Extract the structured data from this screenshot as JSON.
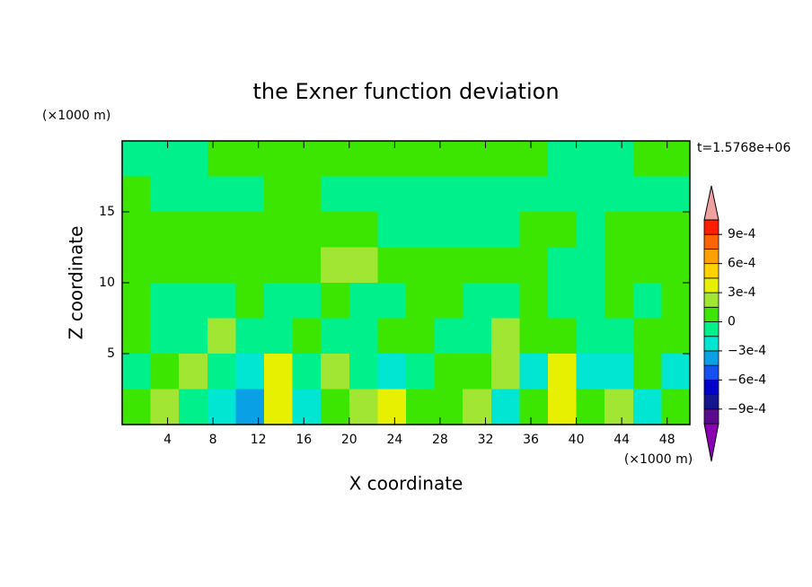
{
  "chart_data": {
    "type": "contour",
    "title": "the Exner function deviation",
    "x_label": "X coordinate",
    "y_label": "Z coordinate",
    "x_unit": "(×1000 m)",
    "y_unit": "(×1000 m)",
    "annotation": "t=1.5768e+06",
    "xlim": [
      0,
      50
    ],
    "ylim": [
      0,
      20
    ],
    "xticks": [
      4,
      8,
      12,
      16,
      20,
      24,
      28,
      32,
      36,
      40,
      44,
      48
    ],
    "yticks": [
      5,
      10,
      15
    ],
    "x": [
      0,
      2.5,
      5,
      7.5,
      10,
      12.5,
      15,
      17.5,
      20,
      22.5,
      25,
      27.5,
      30,
      32.5,
      35,
      37.5,
      40,
      42.5,
      45,
      47.5,
      50
    ],
    "z": [
      20,
      17.5,
      15,
      12.5,
      10,
      7.5,
      5,
      2.5,
      0
    ],
    "values": [
      [
        -5e-05,
        -5e-05,
        -5e-05,
        5e-05,
        5e-05,
        5e-05,
        5e-05,
        5e-05,
        5e-05,
        5e-05,
        5e-05,
        5e-05,
        5e-05,
        5e-05,
        5e-05,
        -5e-05,
        -5e-05,
        -5e-05,
        5e-05,
        5e-05
      ],
      [
        5e-05,
        -5e-05,
        -5e-05,
        -5e-05,
        -5e-05,
        5e-05,
        5e-05,
        -5e-05,
        -5e-05,
        -5e-05,
        -5e-05,
        -5e-05,
        -5e-05,
        -5e-05,
        -5e-05,
        -5e-05,
        -5e-05,
        -5e-05,
        -5e-05,
        -5e-05
      ],
      [
        5e-05,
        5e-05,
        5e-05,
        5e-05,
        5e-05,
        5e-05,
        5e-05,
        5e-05,
        5e-05,
        -5e-05,
        -5e-05,
        -5e-05,
        -5e-05,
        -5e-05,
        5e-05,
        5e-05,
        -5e-05,
        5e-05,
        5e-05,
        5e-05
      ],
      [
        5e-05,
        5e-05,
        5e-05,
        5e-05,
        5e-05,
        5e-05,
        5e-05,
        0.0002,
        0.0002,
        5e-05,
        5e-05,
        5e-05,
        5e-05,
        5e-05,
        5e-05,
        -5e-05,
        -5e-05,
        5e-05,
        5e-05,
        5e-05
      ],
      [
        5e-05,
        -5e-05,
        -5e-05,
        -5e-05,
        5e-05,
        -5e-05,
        -5e-05,
        5e-05,
        -5e-05,
        -5e-05,
        5e-05,
        5e-05,
        -5e-05,
        -5e-05,
        5e-05,
        -5e-05,
        -5e-05,
        5e-05,
        -5e-05,
        5e-05
      ],
      [
        5e-05,
        -5e-05,
        -5e-05,
        0.0002,
        -5e-05,
        -5e-05,
        5e-05,
        -5e-05,
        -5e-05,
        5e-05,
        5e-05,
        -5e-05,
        -5e-05,
        0.0002,
        5e-05,
        5e-05,
        -5e-05,
        -5e-05,
        5e-05,
        5e-05
      ],
      [
        -5e-05,
        5e-05,
        0.0002,
        -5e-05,
        -0.0002,
        0.00035,
        -5e-05,
        0.0002,
        -5e-05,
        -0.0002,
        -5e-05,
        5e-05,
        5e-05,
        0.0002,
        -0.0002,
        0.00035,
        -0.0002,
        -0.0002,
        5e-05,
        -0.0002
      ],
      [
        5e-05,
        0.0002,
        -5e-05,
        -0.0002,
        -0.0004,
        0.00035,
        -0.0002,
        5e-05,
        0.0002,
        0.00035,
        5e-05,
        5e-05,
        0.0002,
        -0.0002,
        5e-05,
        0.00035,
        5e-05,
        0.0002,
        -0.0002,
        5e-05
      ]
    ],
    "levels": [
      -0.00105,
      -0.0009,
      -0.00075,
      -0.0006,
      -0.00045,
      -0.0003,
      -0.00015,
      0,
      0.00015,
      0.0003,
      0.00045,
      0.0006,
      0.00075,
      0.0009,
      0.00105
    ],
    "colors": [
      "#5a0a8c",
      "#14148c",
      "#0000c8",
      "#1450f0",
      "#0aa0e6",
      "#00e6d2",
      "#00f08c",
      "#3ce600",
      "#a0e632",
      "#e6f000",
      "#ffd200",
      "#ffa000",
      "#ff6400",
      "#ff1e00"
    ],
    "extend_colors": [
      "#8c00b4",
      "#f0a0a0"
    ],
    "colorbar_ticks": [
      {
        "value": 0.0009,
        "label": "9e-4"
      },
      {
        "value": 0.0006,
        "label": "6e-4"
      },
      {
        "value": 0.0003,
        "label": "3e-4"
      },
      0,
      {
        "value": -0.0003,
        "label": "−3e-4"
      },
      {
        "value": -0.0006,
        "label": "−6e-4"
      },
      {
        "value": -0.0009,
        "label": "−9e-4"
      }
    ]
  }
}
